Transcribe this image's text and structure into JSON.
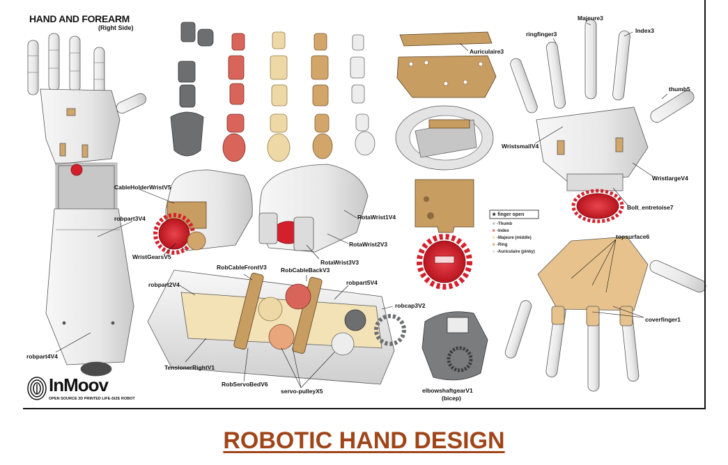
{
  "header": {
    "title": "HAND AND FOREARM",
    "subtitle": "(Right Side)"
  },
  "caption": "ROBOTIC HAND DESIGN",
  "logo": {
    "name": "InMoov",
    "tagline": "OPEN SOURCE 3D PRINTED LIFE-SIZE ROBOT"
  },
  "labels": {
    "robpart3": "robpart3V4",
    "robpart4": "robpart4V4",
    "cableholder": "CableHolderWristV5",
    "wristgears": "WristGearsV5",
    "rotawrist1": "RotaWrist1V4",
    "rotawrist2": "RotaWrist2V3",
    "rotawrist3": "RotaWrist3V3",
    "robcablefront": "RobCableFrontV3",
    "robcableback": "RobCableBackV3",
    "robpart2": "robpart2V4",
    "robpart5": "robpart5V4",
    "robcap": "robcap3V2",
    "tensioner": "TensionerRightV1",
    "robservobed": "RobServoBedV6",
    "servopulley": "servo-pulleyX5",
    "elbowshaft": "elbowshaftgearV1",
    "bicep": "(bicep)",
    "auriculaire": "Auriculaire3",
    "majeure": "Majeure3",
    "ringfinger": "ringfinger3",
    "index": "Index3",
    "thumb": "thumb5",
    "wristsmall": "WristsmallV4",
    "wristlarge": "WristlargeV4",
    "bolt": "Bolt_entretoise7",
    "topsurface": "topsurface6",
    "coverfinger": "coverfinger1"
  },
  "legend": {
    "title": "finger open",
    "items": [
      {
        "text": "-Thumb",
        "color": "#b5b5b5"
      },
      {
        "text": "-Index",
        "color": "#d9645a"
      },
      {
        "text": "-Majeure (middle)",
        "color": "#eed9a6"
      },
      {
        "text": "-Ring",
        "color": "#d2a56a"
      },
      {
        "text": "-Auriculaire (pinky)",
        "color": "#ededed"
      }
    ]
  },
  "colors": {
    "white_part": "#ececec",
    "grey_part": "#6d6e70",
    "red_part": "#d9645a",
    "cream_part": "#eed9a6",
    "tan_part": "#d2a56a",
    "caption": "#a0451a",
    "gear_red": "#d4202c"
  }
}
